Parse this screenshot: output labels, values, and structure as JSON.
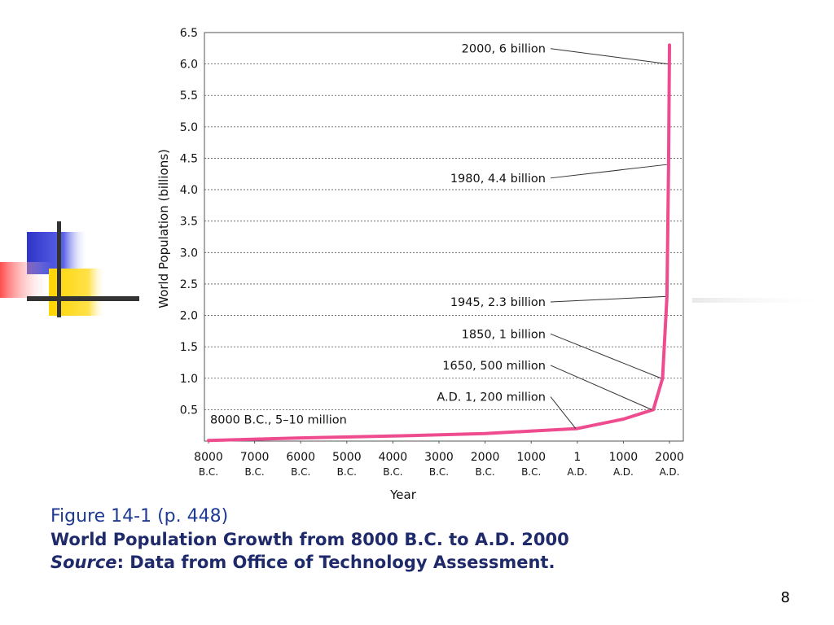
{
  "caption": {
    "figure": "Figure 14-1  (p. 448)",
    "title": "World Population Growth from 8000 B.C. to A.D. 2000",
    "source_label": "Source",
    "source_text": ": Data from Office of Technology Assessment."
  },
  "page_number": "8",
  "colors": {
    "line": "#ee4c8e",
    "caption_blue": "#1f3a93",
    "caption_dark": "#1f2a6b"
  },
  "chart_data": {
    "type": "line",
    "xlabel": "Year",
    "ylabel": "World Population (billions)",
    "ylim": [
      0,
      6.5
    ],
    "yticks": [
      "0.5",
      "1.0",
      "1.5",
      "2.0",
      "2.5",
      "3.0",
      "3.5",
      "4.0",
      "4.5",
      "5.0",
      "5.5",
      "6.0",
      "6.5"
    ],
    "grid": "horizontal dashed",
    "xlim": [
      -8000,
      2000
    ],
    "xticks": [
      {
        "value": -8000,
        "top": "8000",
        "bottom": "B.C."
      },
      {
        "value": -7000,
        "top": "7000",
        "bottom": "B.C."
      },
      {
        "value": -6000,
        "top": "6000",
        "bottom": "B.C."
      },
      {
        "value": -5000,
        "top": "5000",
        "bottom": "B.C."
      },
      {
        "value": -4000,
        "top": "4000",
        "bottom": "B.C."
      },
      {
        "value": -3000,
        "top": "3000",
        "bottom": "B.C."
      },
      {
        "value": -2000,
        "top": "2000",
        "bottom": "B.C."
      },
      {
        "value": -1000,
        "top": "1000",
        "bottom": "B.C."
      },
      {
        "value": 1,
        "top": "1",
        "bottom": "A.D."
      },
      {
        "value": 1000,
        "top": "1000",
        "bottom": "A.D."
      },
      {
        "value": 2000,
        "top": "2000",
        "bottom": "A.D."
      }
    ],
    "series": [
      {
        "x": [
          -8000,
          -6000,
          -4000,
          -2000,
          1,
          1000,
          1650,
          1850,
          1945,
          1980,
          2000
        ],
        "y": [
          0.01,
          0.05,
          0.08,
          0.12,
          0.2,
          0.35,
          0.5,
          1.0,
          2.3,
          4.4,
          6.3
        ]
      }
    ],
    "annotations": [
      {
        "text": "2000, 6 billion",
        "x": 2000,
        "y": 6.0,
        "label_y": 6.18
      },
      {
        "text": "1980, 4.4 billion",
        "x": 1980,
        "y": 4.4,
        "label_y": 4.12
      },
      {
        "text": "1945, 2.3 billion",
        "x": 1945,
        "y": 2.3,
        "label_y": 2.15
      },
      {
        "text": "1850, 1 billion",
        "x": 1850,
        "y": 1.0,
        "label_y": 1.64
      },
      {
        "text": "1650, 500 million",
        "x": 1650,
        "y": 0.5,
        "label_y": 1.14
      },
      {
        "text": "A.D. 1, 200 million",
        "x": 1,
        "y": 0.2,
        "label_y": 0.64
      },
      {
        "text": "8000 B.C., 5–10 million",
        "x": -8000,
        "y": 0.01,
        "label_y": 0.28
      }
    ]
  }
}
